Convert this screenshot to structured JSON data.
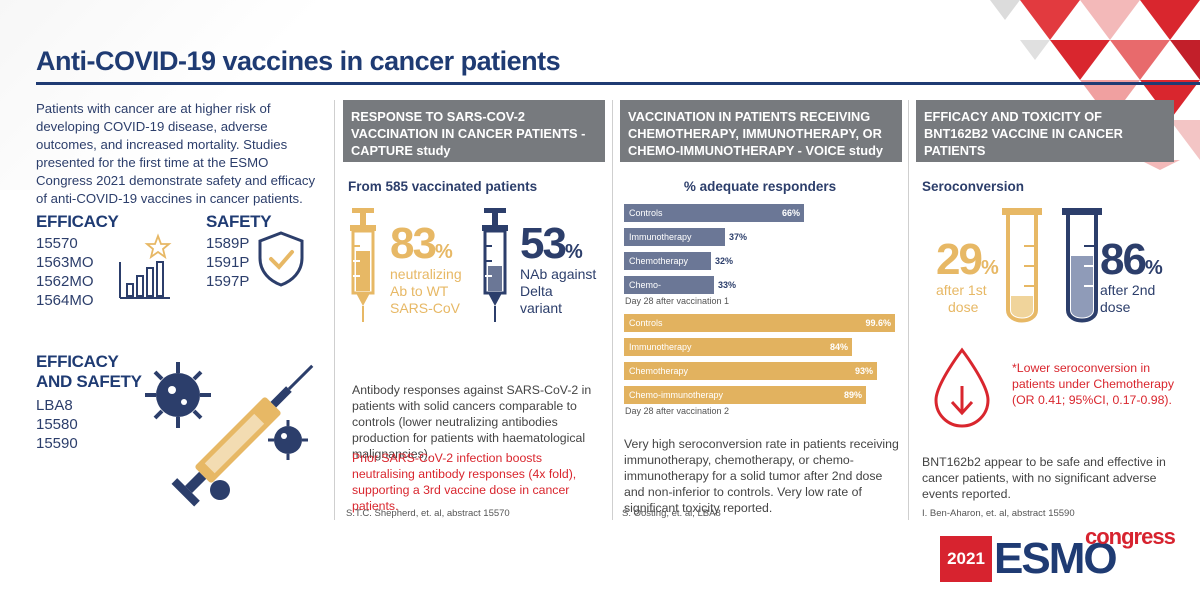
{
  "title": "Anti-COVID-19 vaccines in cancer patients",
  "intro": "Patients with cancer are at higher risk of developing COVID-19 disease, adverse outcomes, and increased mortality. Studies presented for the first time at the ESMO Congress 2021 demonstrate safety and efficacy of anti-COVID-19 vaccines in cancer patients.",
  "efficacy": {
    "label": "EFFICACY",
    "codes": [
      "15570",
      "1563MO",
      "1562MO",
      "1564MO"
    ]
  },
  "safety": {
    "label": "SAFETY",
    "codes": [
      "1589P",
      "1591P",
      "1597P"
    ]
  },
  "efficacy_safety": {
    "label1": "EFFICACY",
    "label2": "AND SAFETY",
    "codes": [
      "LBA8",
      "15580",
      "15590"
    ]
  },
  "capture": {
    "header": "RESPONSE TO SARS-COV-2 VACCINATION IN CANCER PATIENTS - ",
    "header_sub": "CAPTURE study",
    "subhead": "From 585 vaccinated patients",
    "stat1": {
      "value": "83",
      "unit": "%",
      "l1": "neutralizing",
      "l2": "Ab to WT",
      "l3": "SARS-CoV"
    },
    "stat2": {
      "value": "53",
      "unit": "%",
      "l1": "NAb against",
      "l2": "Delta",
      "l3": "variant"
    },
    "body": "Antibody responses against SARS-CoV-2 in patients with solid cancers comparable to controls (lower neutralizing antibodies production for patients with haematological malignancies).",
    "red": "Prior SARS-CoV-2 infection boosts neutralising antibody responses (4x fold), supporting a 3rd vaccine dose in cancer patients.",
    "cite": "S.T.C. Shepherd, et. al, abstract 15570"
  },
  "voice": {
    "header": "VACCINATION IN PATIENTS RECEIVING CHEMOTHERAPY, IMMUNOTHERAPY, OR CHEMO-IMMUNOTHERAPY - ",
    "header_sub": "VOICE study",
    "subhead": "% adequate responders",
    "day1": "Day 28 after vaccination 1",
    "day2": "Day 28 after vaccination 2",
    "body": "Very high seroconversion rate in patients receiving immunotherapy, chemotherapy, or chemo-immunotherapy for a solid tumor after 2nd dose and non-inferior to controls. Very low rate of significant toxicity reported.",
    "cite": "S. Oosting, et. al, LBA8"
  },
  "chart_data": {
    "type": "bar",
    "categories": [
      "Controls",
      "Immunotherapy",
      "Chemotherapy",
      "Chemo-immunotherapy"
    ],
    "series": [
      {
        "name": "Day 28 after vaccination 1",
        "values": [
          66,
          37,
          32,
          33
        ],
        "labels": [
          "66%",
          "37%",
          "32%",
          "33%"
        ]
      },
      {
        "name": "Day 28 after vaccination 2",
        "values": [
          99.6,
          84,
          93,
          89
        ],
        "labels": [
          "99.6%",
          "84%",
          "93%",
          "89%"
        ]
      }
    ],
    "title": "% adequate responders",
    "ylim": [
      0,
      100
    ]
  },
  "bnt": {
    "header": "EFFICACY AND TOXICITY OF BNT162B2 VACCINE IN CANCER PATIENTS",
    "subhead": "Seroconversion",
    "stat1": {
      "value": "29",
      "unit": "%",
      "l1": "after 1st",
      "l2": "dose"
    },
    "stat2": {
      "value": "86",
      "unit": "%",
      "l1": "after 2nd",
      "l2": "dose"
    },
    "red": "*Lower seroconversion in patients under Chemotherapy (OR 0.41; 95%CI, 0.17-0.98).",
    "body": "BNT162b2 appear to be safe and effective in cancer patients, with no significant adverse events reported.",
    "cite": "I. Ben-Aharon, et. al, abstract 15590"
  },
  "logo": {
    "year": "2021",
    "name": "ESMO",
    "word": "congress"
  },
  "colors": {
    "navy": "#2c3e6b",
    "gold": "#e2b25f",
    "red": "#d9262e",
    "grey": "#777a7e"
  }
}
